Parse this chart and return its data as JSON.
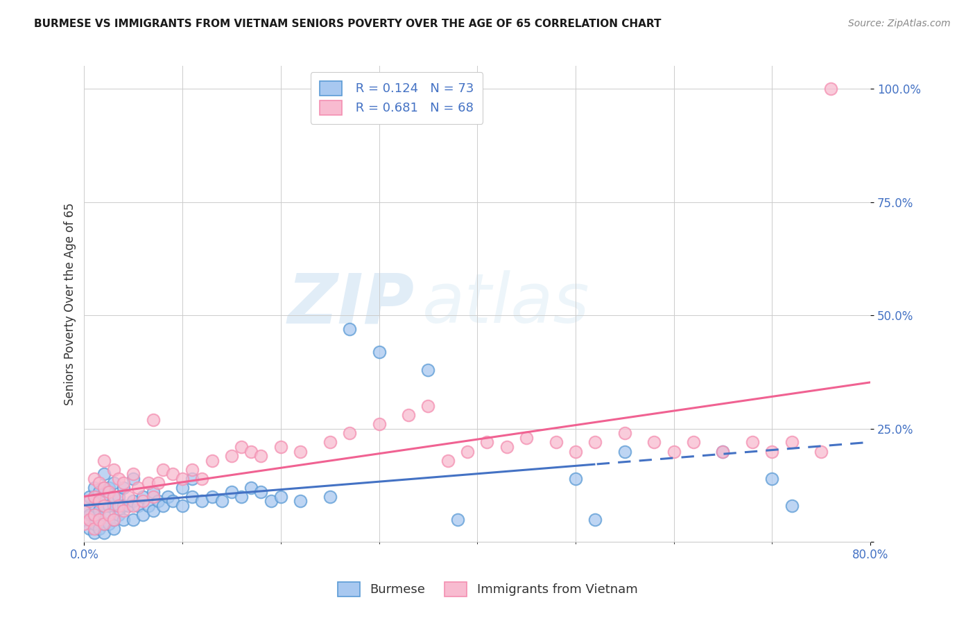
{
  "title": "BURMESE VS IMMIGRANTS FROM VIETNAM SENIORS POVERTY OVER THE AGE OF 65 CORRELATION CHART",
  "source": "Source: ZipAtlas.com",
  "ylabel": "Seniors Poverty Over the Age of 65",
  "blue_R": "0.124",
  "blue_N": "73",
  "pink_R": "0.681",
  "pink_N": "68",
  "blue_color": "#A8C8F0",
  "pink_color": "#F8BBD0",
  "blue_edge_color": "#5B9BD5",
  "pink_edge_color": "#F48FB1",
  "blue_line_color": "#4472C4",
  "pink_line_color": "#F06292",
  "watermark_zip": "ZIP",
  "watermark_atlas": "atlas",
  "background_color": "#FFFFFF",
  "xlim": [
    0.0,
    0.8
  ],
  "ylim": [
    0.0,
    1.05
  ],
  "xticks": [
    0.0,
    0.1,
    0.2,
    0.3,
    0.4,
    0.5,
    0.6,
    0.7,
    0.8
  ],
  "yticks": [
    0.0,
    0.25,
    0.5,
    0.75,
    1.0
  ],
  "ytick_labels": [
    "",
    "25.0%",
    "50.0%",
    "75.0%",
    "100.0%"
  ],
  "blue_scatter_x": [
    0.0,
    0.0,
    0.005,
    0.005,
    0.005,
    0.01,
    0.01,
    0.01,
    0.01,
    0.01,
    0.01,
    0.015,
    0.015,
    0.015,
    0.02,
    0.02,
    0.02,
    0.02,
    0.02,
    0.02,
    0.02,
    0.025,
    0.025,
    0.025,
    0.03,
    0.03,
    0.03,
    0.03,
    0.03,
    0.035,
    0.035,
    0.04,
    0.04,
    0.04,
    0.045,
    0.05,
    0.05,
    0.05,
    0.055,
    0.06,
    0.06,
    0.065,
    0.07,
    0.07,
    0.075,
    0.08,
    0.085,
    0.09,
    0.1,
    0.1,
    0.11,
    0.11,
    0.12,
    0.13,
    0.14,
    0.15,
    0.16,
    0.17,
    0.18,
    0.19,
    0.2,
    0.22,
    0.25,
    0.27,
    0.3,
    0.35,
    0.38,
    0.5,
    0.52,
    0.55,
    0.65,
    0.7,
    0.72
  ],
  "blue_scatter_y": [
    0.05,
    0.08,
    0.03,
    0.06,
    0.1,
    0.02,
    0.04,
    0.06,
    0.08,
    0.1,
    0.12,
    0.03,
    0.07,
    0.11,
    0.02,
    0.04,
    0.06,
    0.08,
    0.1,
    0.12,
    0.15,
    0.04,
    0.08,
    0.12,
    0.03,
    0.05,
    0.08,
    0.1,
    0.13,
    0.06,
    0.1,
    0.05,
    0.08,
    0.12,
    0.08,
    0.05,
    0.09,
    0.14,
    0.08,
    0.06,
    0.1,
    0.08,
    0.07,
    0.11,
    0.09,
    0.08,
    0.1,
    0.09,
    0.08,
    0.12,
    0.1,
    0.14,
    0.09,
    0.1,
    0.09,
    0.11,
    0.1,
    0.12,
    0.11,
    0.09,
    0.1,
    0.09,
    0.1,
    0.47,
    0.42,
    0.38,
    0.05,
    0.14,
    0.05,
    0.2,
    0.2,
    0.14,
    0.08
  ],
  "pink_scatter_x": [
    0.0,
    0.0,
    0.005,
    0.005,
    0.01,
    0.01,
    0.01,
    0.01,
    0.015,
    0.015,
    0.015,
    0.02,
    0.02,
    0.02,
    0.02,
    0.025,
    0.025,
    0.03,
    0.03,
    0.03,
    0.035,
    0.035,
    0.04,
    0.04,
    0.045,
    0.05,
    0.05,
    0.055,
    0.06,
    0.065,
    0.07,
    0.07,
    0.075,
    0.08,
    0.09,
    0.1,
    0.11,
    0.12,
    0.13,
    0.15,
    0.16,
    0.17,
    0.18,
    0.2,
    0.22,
    0.25,
    0.27,
    0.3,
    0.33,
    0.35,
    0.37,
    0.39,
    0.41,
    0.43,
    0.45,
    0.48,
    0.5,
    0.52,
    0.55,
    0.58,
    0.6,
    0.62,
    0.65,
    0.68,
    0.7,
    0.72,
    0.75,
    0.76
  ],
  "pink_scatter_y": [
    0.04,
    0.07,
    0.05,
    0.09,
    0.03,
    0.06,
    0.1,
    0.14,
    0.05,
    0.09,
    0.13,
    0.04,
    0.08,
    0.12,
    0.18,
    0.06,
    0.11,
    0.05,
    0.1,
    0.16,
    0.08,
    0.14,
    0.07,
    0.13,
    0.1,
    0.08,
    0.15,
    0.12,
    0.09,
    0.13,
    0.1,
    0.27,
    0.13,
    0.16,
    0.15,
    0.14,
    0.16,
    0.14,
    0.18,
    0.19,
    0.21,
    0.2,
    0.19,
    0.21,
    0.2,
    0.22,
    0.24,
    0.26,
    0.28,
    0.3,
    0.18,
    0.2,
    0.22,
    0.21,
    0.23,
    0.22,
    0.2,
    0.22,
    0.24,
    0.22,
    0.2,
    0.22,
    0.2,
    0.22,
    0.2,
    0.22,
    0.2,
    1.0
  ]
}
